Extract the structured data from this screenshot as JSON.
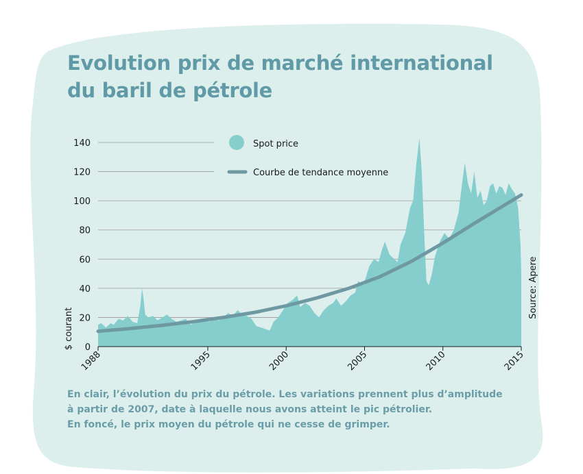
{
  "title": {
    "line1": "Evolution prix de marché international",
    "line2": "du baril de pétrole"
  },
  "caption": {
    "line1": "En clair, l’évolution du prix du pétrole. Les variations prennent plus d’amplitude",
    "line2": "à partir de 2007, date à laquelle nous avons atteint le pic pétrolier.",
    "line3": "En foncé, le prix moyen du pétrole qui ne cesse de grimper."
  },
  "colors": {
    "background_blob": "#dcefed",
    "spot_fill": "#86cdcd",
    "trend_line": "#6e99a3",
    "title": "#5f9aa6",
    "caption": "#6a9da8",
    "grid": "#9a9a9a"
  },
  "chart_data": {
    "type": "area",
    "ylabel": "$ courant",
    "source": "Source: Apere",
    "xlim": [
      1988,
      2015
    ],
    "ylim": [
      0,
      140
    ],
    "y_ticks": [
      0,
      20,
      40,
      60,
      80,
      100,
      120,
      140
    ],
    "x_ticks": [
      1988,
      1995,
      2000,
      2005,
      2010,
      2015
    ],
    "grid": "horizontal",
    "legend": {
      "placement": "top",
      "items": [
        {
          "label": "Spot price",
          "marker": "circle"
        },
        {
          "label": "Courbe de tendance moyenne",
          "marker": "line"
        }
      ]
    },
    "series": [
      {
        "name": "Spot price",
        "type": "area",
        "x": [
          1988.0,
          1988.2,
          1988.5,
          1988.8,
          1989.0,
          1989.3,
          1989.6,
          1989.9,
          1990.2,
          1990.5,
          1990.7,
          1990.8,
          1990.9,
          1991.0,
          1991.2,
          1991.5,
          1991.8,
          1992.1,
          1992.4,
          1992.7,
          1993.0,
          1993.3,
          1993.6,
          1993.9,
          1994.2,
          1994.5,
          1994.8,
          1995.1,
          1995.4,
          1995.7,
          1996.0,
          1996.3,
          1996.6,
          1996.9,
          1997.2,
          1997.5,
          1997.8,
          1998.1,
          1998.4,
          1998.7,
          1998.95,
          1999.2,
          1999.5,
          1999.8,
          2000.1,
          2000.4,
          2000.7,
          2000.9,
          2001.2,
          2001.5,
          2001.8,
          2002.1,
          2002.4,
          2002.7,
          2003.0,
          2003.2,
          2003.5,
          2003.8,
          2004.1,
          2004.4,
          2004.6,
          2004.9,
          2005.1,
          2005.3,
          2005.6,
          2005.9,
          2006.1,
          2006.3,
          2006.6,
          2006.9,
          2007.1,
          2007.3,
          2007.6,
          2007.9,
          2008.1,
          2008.3,
          2008.5,
          2008.65,
          2008.8,
          2008.95,
          2009.1,
          2009.3,
          2009.5,
          2009.8,
          2010.1,
          2010.4,
          2010.7,
          2011.0,
          2011.2,
          2011.4,
          2011.6,
          2011.8,
          2012.0,
          2012.2,
          2012.4,
          2012.6,
          2012.8,
          2013.0,
          2013.2,
          2013.4,
          2013.6,
          2013.8,
          2014.0,
          2014.2,
          2014.4,
          2014.6,
          2014.8,
          2014.95,
          2015.0
        ],
        "values": [
          15,
          16,
          13,
          16,
          15,
          19,
          18,
          21,
          17,
          16,
          28,
          40,
          33,
          22,
          20,
          21,
          18,
          20,
          22,
          19,
          17,
          18,
          19,
          15,
          17,
          19,
          18,
          17,
          19,
          18,
          20,
          23,
          21,
          25,
          22,
          21,
          19,
          14,
          13,
          12,
          11,
          17,
          20,
          25,
          30,
          32,
          35,
          27,
          30,
          28,
          23,
          20,
          25,
          28,
          30,
          33,
          28,
          31,
          35,
          37,
          45,
          42,
          48,
          55,
          60,
          58,
          66,
          72,
          63,
          60,
          58,
          70,
          78,
          95,
          100,
          125,
          143,
          120,
          80,
          45,
          42,
          50,
          62,
          72,
          78,
          74,
          80,
          92,
          110,
          126,
          112,
          105,
          120,
          102,
          107,
          97,
          100,
          110,
          112,
          105,
          110,
          109,
          104,
          112,
          108,
          105,
          95,
          70,
          50
        ]
      },
      {
        "name": "Courbe de tendance moyenne",
        "type": "line",
        "x": [
          1988,
          1990,
          1992,
          1994,
          1996,
          1998,
          2000,
          2002,
          2004,
          2006,
          2008,
          2010,
          2012,
          2014,
          2015
        ],
        "values": [
          10.5,
          12.3,
          14.5,
          17,
          20,
          23.5,
          28,
          33.5,
          40,
          48,
          58.5,
          71,
          84.5,
          97.5,
          104
        ]
      }
    ]
  }
}
